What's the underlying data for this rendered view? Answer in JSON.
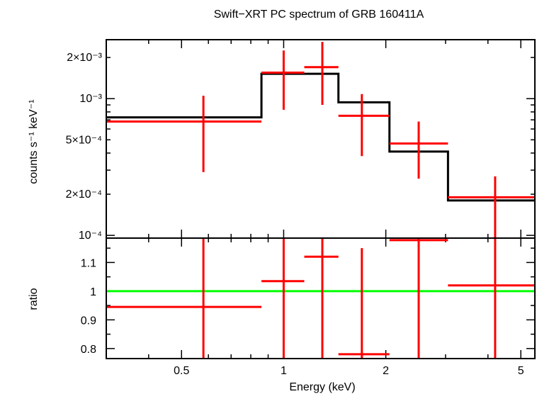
{
  "chart_data": [
    {
      "type": "line",
      "panel": "spectrum",
      "title": "Swift−XRT PC spectrum of GRB 160411A",
      "ylabel": "counts s⁻¹ keV⁻¹",
      "xscale": "log",
      "yscale": "log",
      "xlim": [
        0.3,
        5.5
      ],
      "ylim": [
        9.55e-05,
        0.0027
      ],
      "yticks": [
        {
          "value": 0.0001,
          "label": "10⁻⁴"
        },
        {
          "value": 0.0002,
          "label": "2×10⁻⁴"
        },
        {
          "value": 0.0005,
          "label": "5×10⁻⁴"
        },
        {
          "value": 0.001,
          "label": "10⁻³"
        },
        {
          "value": 0.002,
          "label": "2×10⁻³"
        }
      ],
      "data_points": [
        {
          "x": 0.58,
          "x_lo": 0.3,
          "x_hi": 0.86,
          "y": 0.00068,
          "y_lo": 0.00029,
          "y_hi": 0.00105
        },
        {
          "x": 1.0,
          "x_lo": 0.86,
          "x_hi": 1.15,
          "y": 0.00155,
          "y_lo": 0.00083,
          "y_hi": 0.00225
        },
        {
          "x": 1.3,
          "x_lo": 1.15,
          "x_hi": 1.45,
          "y": 0.0017,
          "y_lo": 0.0009,
          "y_hi": 0.0026
        },
        {
          "x": 1.7,
          "x_lo": 1.45,
          "x_hi": 2.05,
          "y": 0.00075,
          "y_lo": 0.00038,
          "y_hi": 0.00108
        },
        {
          "x": 2.5,
          "x_lo": 2.05,
          "x_hi": 3.05,
          "y": 0.00047,
          "y_lo": 0.00026,
          "y_hi": 0.00068
        },
        {
          "x": 4.2,
          "x_lo": 3.05,
          "x_hi": 5.5,
          "y": 0.00019,
          "y_lo": 9.55e-05,
          "y_hi": 0.00027
        }
      ],
      "model_steps": [
        {
          "x_lo": 0.3,
          "x_hi": 0.86,
          "y": 0.00073
        },
        {
          "x_lo": 0.86,
          "x_hi": 1.45,
          "y": 0.00152
        },
        {
          "x_lo": 1.45,
          "x_hi": 2.05,
          "y": 0.00094
        },
        {
          "x_lo": 2.05,
          "x_hi": 3.05,
          "y": 0.00041
        },
        {
          "x_lo": 3.05,
          "x_hi": 5.5,
          "y": 0.00018
        }
      ],
      "colors": {
        "data": "#ff0000",
        "model": "#000000"
      }
    },
    {
      "type": "scatter",
      "panel": "ratio",
      "xlabel": "Energy (keV)",
      "ylabel": "ratio",
      "xscale": "log",
      "xlim": [
        0.3,
        5.5
      ],
      "ylim": [
        0.765,
        1.185
      ],
      "xticks": [
        {
          "value": 0.5,
          "label": "0.5"
        },
        {
          "value": 1,
          "label": "1"
        },
        {
          "value": 2,
          "label": "2"
        },
        {
          "value": 5,
          "label": "5"
        }
      ],
      "yticks": [
        {
          "value": 0.8,
          "label": "0.8"
        },
        {
          "value": 0.9,
          "label": "0.9"
        },
        {
          "value": 1.0,
          "label": "1"
        },
        {
          "value": 1.1,
          "label": "1.1"
        }
      ],
      "reference_line": 1.0,
      "data_points": [
        {
          "x": 0.58,
          "x_lo": 0.3,
          "x_hi": 0.86,
          "y": 0.945,
          "y_lo": 0.765,
          "y_hi": 1.185
        },
        {
          "x": 1.0,
          "x_lo": 0.86,
          "x_hi": 1.15,
          "y": 1.035,
          "y_lo": 0.765,
          "y_hi": 1.185
        },
        {
          "x": 1.3,
          "x_lo": 1.15,
          "x_hi": 1.45,
          "y": 1.12,
          "y_lo": 0.765,
          "y_hi": 1.185
        },
        {
          "x": 1.7,
          "x_lo": 1.45,
          "x_hi": 2.05,
          "y": 0.78,
          "y_lo": 0.765,
          "y_hi": 1.15
        },
        {
          "x": 2.5,
          "x_lo": 2.05,
          "x_hi": 3.05,
          "y": 1.178,
          "y_lo": 0.765,
          "y_hi": 1.185
        },
        {
          "x": 4.2,
          "x_lo": 3.05,
          "x_hi": 5.5,
          "y": 1.02,
          "y_lo": 0.765,
          "y_hi": 1.185
        }
      ],
      "colors": {
        "data": "#ff0000",
        "reference": "#00ff00"
      }
    }
  ]
}
